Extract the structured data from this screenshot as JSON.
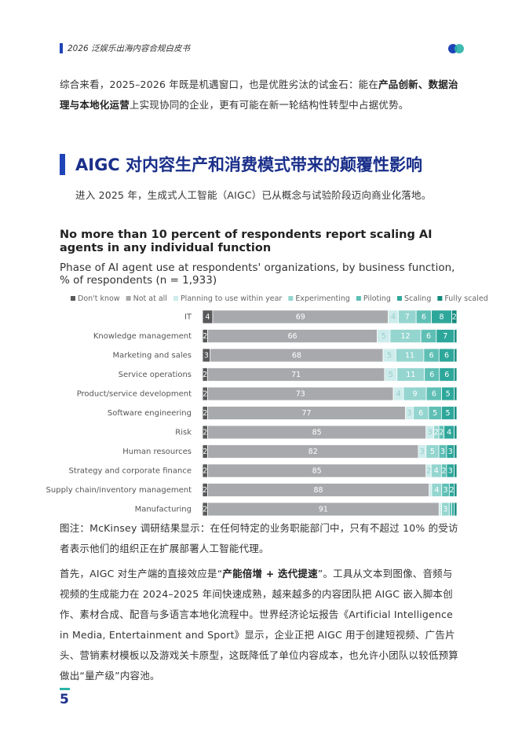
{
  "header": {
    "title": "2026 泛娱乐出海内容合规白皮书"
  },
  "intro": [
    "综合来看，2025–2026 年既是机遇窗口，也是优胜劣汰的试金石：能在",
    "产品创新、数据治理与本地化运营",
    "上实现协同的企业，更有可能在新一轮结构性转型中占据优势。"
  ],
  "section": {
    "title": "AIGC 对内容生产和消费模式带来的颠覆性影响",
    "lead": "进入 2025 年，生成式人工智能（AIGC）已从概念与试验阶段迈向商业化落地。"
  },
  "chart_data": {
    "type": "stacked-bar-horizontal",
    "title": "No more than 10 percent of respondents report scaling AI agents in any individual function",
    "subtitle": "Phase of AI agent use at respondents' organizations, by business function, % of respondents (n = 1,933)",
    "categories": [
      "IT",
      "Knowledge management",
      "Marketing and sales",
      "Service operations",
      "Product/service development",
      "Software engineering",
      "Risk",
      "Human resources",
      "Strategy and corporate finance",
      "Supply chain/inventory management",
      "Manufacturing"
    ],
    "series": [
      {
        "name": "Don't know",
        "color": "#58595b",
        "values": [
          4,
          2,
          3,
          2,
          2,
          2,
          2,
          2,
          2,
          2,
          2
        ]
      },
      {
        "name": "Not at all",
        "color": "#a7a9ac",
        "values": [
          69,
          66,
          68,
          71,
          73,
          77,
          85,
          82,
          85,
          88,
          91
        ]
      },
      {
        "name": "Planning to use within year",
        "color": "#cdeceb",
        "values": [
          4,
          5,
          5,
          5,
          4,
          3,
          3,
          3,
          2,
          1,
          1
        ]
      },
      {
        "name": "Experimenting",
        "color": "#95d5cf",
        "values": [
          7,
          12,
          11,
          11,
          9,
          6,
          2,
          5,
          4,
          4,
          3
        ]
      },
      {
        "name": "Piloting",
        "color": "#5fbfb5",
        "values": [
          6,
          6,
          6,
          6,
          6,
          5,
          2,
          3,
          2,
          3,
          1
        ]
      },
      {
        "name": "Scaling",
        "color": "#2ea79b",
        "values": [
          8,
          7,
          6,
          6,
          5,
          5,
          4,
          3,
          3,
          2,
          1
        ]
      },
      {
        "name": "Fully scaled",
        "color": "#138a7e",
        "values": [
          2,
          1,
          1,
          1,
          1,
          1,
          1,
          1,
          1,
          1,
          1
        ]
      }
    ],
    "legend": "top-left"
  },
  "caption": "图注：McKinsey 调研结果显示：在任何特定的业务职能部门中，只有不超过 10% 的受访者表示他们的组织正在扩展部署人工智能代理。",
  "body": [
    "首先，AIGC 对生产端的直接效应是“",
    "产能倍增 + 迭代提速",
    "”。工具从文本到图像、音频与视频的生成能力在 2024–2025 年间快速成熟，越来越多的内容团队把 AIGC 嵌入脚本创作、素材合成、配音与多语言本地化流程中。世界经济论坛报告《Artificial Intelligence in Media, Entertainment and Sport》显示，企业正把 AIGC 用于创建短视频、广告片头、营销素材模板以及游戏关卡原型，这既降低了单位内容成本，也允许小团队以较低预算做出“量产级”内容池。"
  ],
  "footer": {
    "page": "5"
  }
}
